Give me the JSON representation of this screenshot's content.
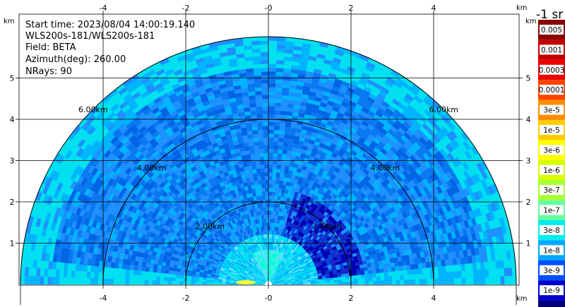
{
  "info": {
    "start_time": "Start time: 2023/08/04 14:00:19.140",
    "device": "WLS200s-181/WLS200s-181",
    "field": "Field: BETA",
    "azimuth": "Azimuth(deg): 260.00",
    "nrays": "NRays: 90"
  },
  "colorbar": {
    "title": "-1 sr",
    "labels": [
      "0.005",
      "0.001",
      "0.0003",
      "0.0001",
      "3e-5",
      "1e-5",
      "3e-6",
      "1e-6",
      "3e-7",
      "1e-7",
      "3e-8",
      "1e-8",
      "3e-9",
      "1e-9"
    ],
    "colors": [
      "#8b0000",
      "#c40000",
      "#ee0000",
      "#ff4400",
      "#ff8c00",
      "#ffcc00",
      "#ffff00",
      "#d8ff00",
      "#aaff33",
      "#66ffa0",
      "#00eeee",
      "#00a8ff",
      "#0050ff",
      "#0000cc",
      "#000080"
    ],
    "text_colors": [
      "#ffffff",
      "#000000",
      "#000000",
      "#000000",
      "#000000",
      "#000000",
      "#000000",
      "#000000",
      "#000000",
      "#000000",
      "#000000",
      "#000000",
      "#000000",
      "#000000"
    ]
  },
  "chart_data": {
    "type": "heatmap",
    "field": "BETA",
    "units": "km",
    "x_range": [
      -6,
      6
    ],
    "y_range": [
      0,
      6
    ],
    "x_ticks": [
      "-4",
      "-2",
      "-0",
      "2",
      "4"
    ],
    "x_tick_values": [
      -4,
      -2,
      0,
      2,
      4
    ],
    "y_ticks": [
      "1",
      "2",
      "3",
      "4",
      "5"
    ],
    "y_tick_values": [
      1,
      2,
      3,
      4,
      5
    ],
    "x_unit_label": "km",
    "y_unit_label": "km",
    "max_range_km": 6.0,
    "range_rings": [
      {
        "radius": 2,
        "label": "2.00km"
      },
      {
        "radius": 4,
        "label": "4.00km"
      },
      {
        "radius": 6,
        "label": "6.00km"
      }
    ],
    "grid": true
  }
}
